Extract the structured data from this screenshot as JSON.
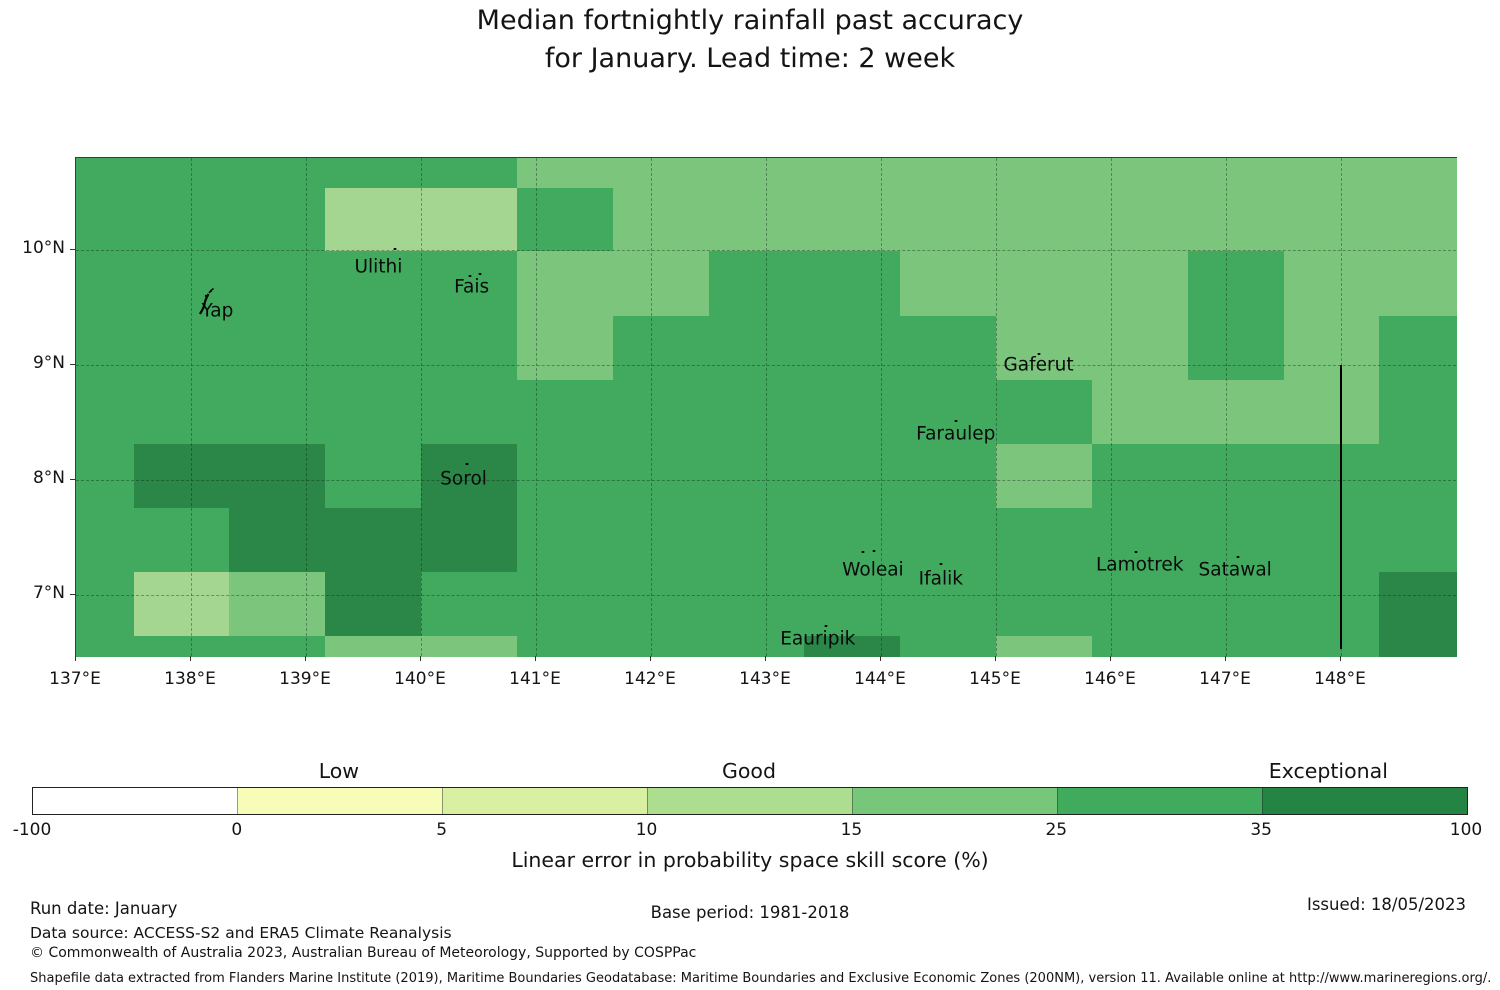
{
  "title": {
    "line1": "Median fortnightly rainfall past accuracy",
    "line2": "for January. Lead time: 2 week"
  },
  "footer": {
    "run_date": "Run date: January",
    "base_period": "Base period: 1981-2018",
    "issued": "Issued: 18/05/2023",
    "data_source": "Data source: ACCESS-S2 and ERA5 Climate Reanalysis",
    "copyright": "© Commonwealth of Australia 2023, Australian Bureau of Meteorology, Supported by COSPPac",
    "shapefile": "Shapefile data extracted from Flanders Marine Institute (2019), Maritime Boundaries Geodatabase: Maritime Boundaries and Exclusive Economic Zones (200NM), version 11. Available online at http://www.marineregions.org/."
  },
  "chart_data": {
    "type": "heatmap",
    "title": "Median fortnightly rainfall past accuracy for January. Lead time: 2 week",
    "colorbar_label": "Linear error in probability space skill score (%)",
    "axis": {
      "lon_min": 137,
      "lon_max": 149,
      "lat_min": 6.47,
      "lat_max": 10.8
    },
    "x_ticks": [
      {
        "label": "137°E",
        "lon": 137
      },
      {
        "label": "138°E",
        "lon": 138
      },
      {
        "label": "139°E",
        "lon": 139
      },
      {
        "label": "140°E",
        "lon": 140
      },
      {
        "label": "141°E",
        "lon": 141
      },
      {
        "label": "142°E",
        "lon": 142
      },
      {
        "label": "143°E",
        "lon": 143
      },
      {
        "label": "144°E",
        "lon": 144
      },
      {
        "label": "145°E",
        "lon": 145
      },
      {
        "label": "146°E",
        "lon": 146
      },
      {
        "label": "147°E",
        "lon": 147
      },
      {
        "label": "148°E",
        "lon": 148
      }
    ],
    "y_ticks": [
      {
        "label": "10°N",
        "lat": 10
      },
      {
        "label": "9°N",
        "lat": 9
      },
      {
        "label": "8°N",
        "lat": 8
      },
      {
        "label": "7°N",
        "lat": 7
      }
    ],
    "grid": {
      "lon_edges": [
        137.0,
        137.5,
        138.333,
        139.167,
        140.0,
        140.833,
        141.667,
        142.5,
        143.333,
        144.167,
        145.0,
        145.833,
        146.667,
        147.5,
        148.333,
        149.0
      ],
      "lat_edges": [
        10.8,
        10.54,
        9.99,
        9.43,
        8.87,
        8.31,
        7.76,
        7.2,
        6.64,
        6.47
      ],
      "palette": {
        "P": "#a5d691",
        "L": "#7cc57d",
        "M": "#42aa5f",
        "D": "#2a8747"
      },
      "value_bins": {
        "P": "10-15",
        "L": "15-25",
        "M": "25-35",
        "D": "35-100"
      },
      "rows": [
        "MMMMMLLLLLLLLLL",
        "MMMPPMLLLLLLLLL",
        "MMMMMLLMMLLLMLL",
        "MMMMMLMMMMLLMLM",
        "MMMMMMMMMMMLLLM",
        "MDDMDMMMMMLMMMM",
        "MMDDDMMMMMMMMMM",
        "MPLDMMMMMMMMMMD",
        "MMMLLMMMDMLMMMD"
      ]
    },
    "islands": [
      {
        "name": "Yap",
        "lon": 138.23,
        "lat": 9.47,
        "glyph": "yap-islands",
        "glyph_lon": 138.13,
        "glyph_lat": 9.55,
        "dots": []
      },
      {
        "name": "Ulithi",
        "lon": 139.63,
        "lat": 9.85,
        "dots": [
          [
            139.77,
            10.01
          ]
        ]
      },
      {
        "name": "Fais",
        "lon": 140.44,
        "lat": 9.68,
        "dots": [
          [
            140.43,
            9.77
          ],
          [
            140.51,
            9.79
          ]
        ]
      },
      {
        "name": "Sorol",
        "lon": 140.37,
        "lat": 8.01,
        "dots": [
          [
            140.4,
            8.14
          ]
        ]
      },
      {
        "name": "Gaferut",
        "lon": 145.37,
        "lat": 9.0,
        "dots": [
          [
            145.37,
            9.1
          ]
        ]
      },
      {
        "name": "Faraulep",
        "lon": 144.65,
        "lat": 8.4,
        "dots": [
          [
            144.65,
            8.51
          ]
        ]
      },
      {
        "name": "Woleai",
        "lon": 143.93,
        "lat": 7.22,
        "dots": [
          [
            143.84,
            7.37
          ],
          [
            143.94,
            7.38
          ]
        ]
      },
      {
        "name": "Ifalik",
        "lon": 144.52,
        "lat": 7.14,
        "dots": [
          [
            144.52,
            7.27
          ]
        ]
      },
      {
        "name": "Lamotrek",
        "lon": 146.25,
        "lat": 7.26,
        "dots": [
          [
            146.22,
            7.37
          ]
        ]
      },
      {
        "name": "Satawal",
        "lon": 147.08,
        "lat": 7.22,
        "dots": [
          [
            147.1,
            7.33
          ]
        ]
      },
      {
        "name": "Eauripik",
        "lon": 143.45,
        "lat": 6.62,
        "dots": [
          [
            143.52,
            6.73
          ]
        ]
      }
    ],
    "eez_line": {
      "lon": 148,
      "lat_top": 9.0,
      "lat_bottom": 6.53
    },
    "colorbar": {
      "boundaries": [
        -100,
        0,
        5,
        10,
        15,
        25,
        35,
        100
      ],
      "tick_labels": [
        "-100",
        "0",
        "5",
        "10",
        "15",
        "25",
        "35",
        "100"
      ],
      "colors": [
        "#ffffff",
        "#f7fcb9",
        "#d9f0a3",
        "#addd8e",
        "#78c679",
        "#41ab5d",
        "#238443"
      ],
      "class_labels": [
        {
          "label": "Low",
          "pos_pct": 21.4
        },
        {
          "label": "Good",
          "pos_pct": 50.0
        },
        {
          "label": "Exceptional",
          "pos_pct": 90.4
        }
      ]
    }
  }
}
